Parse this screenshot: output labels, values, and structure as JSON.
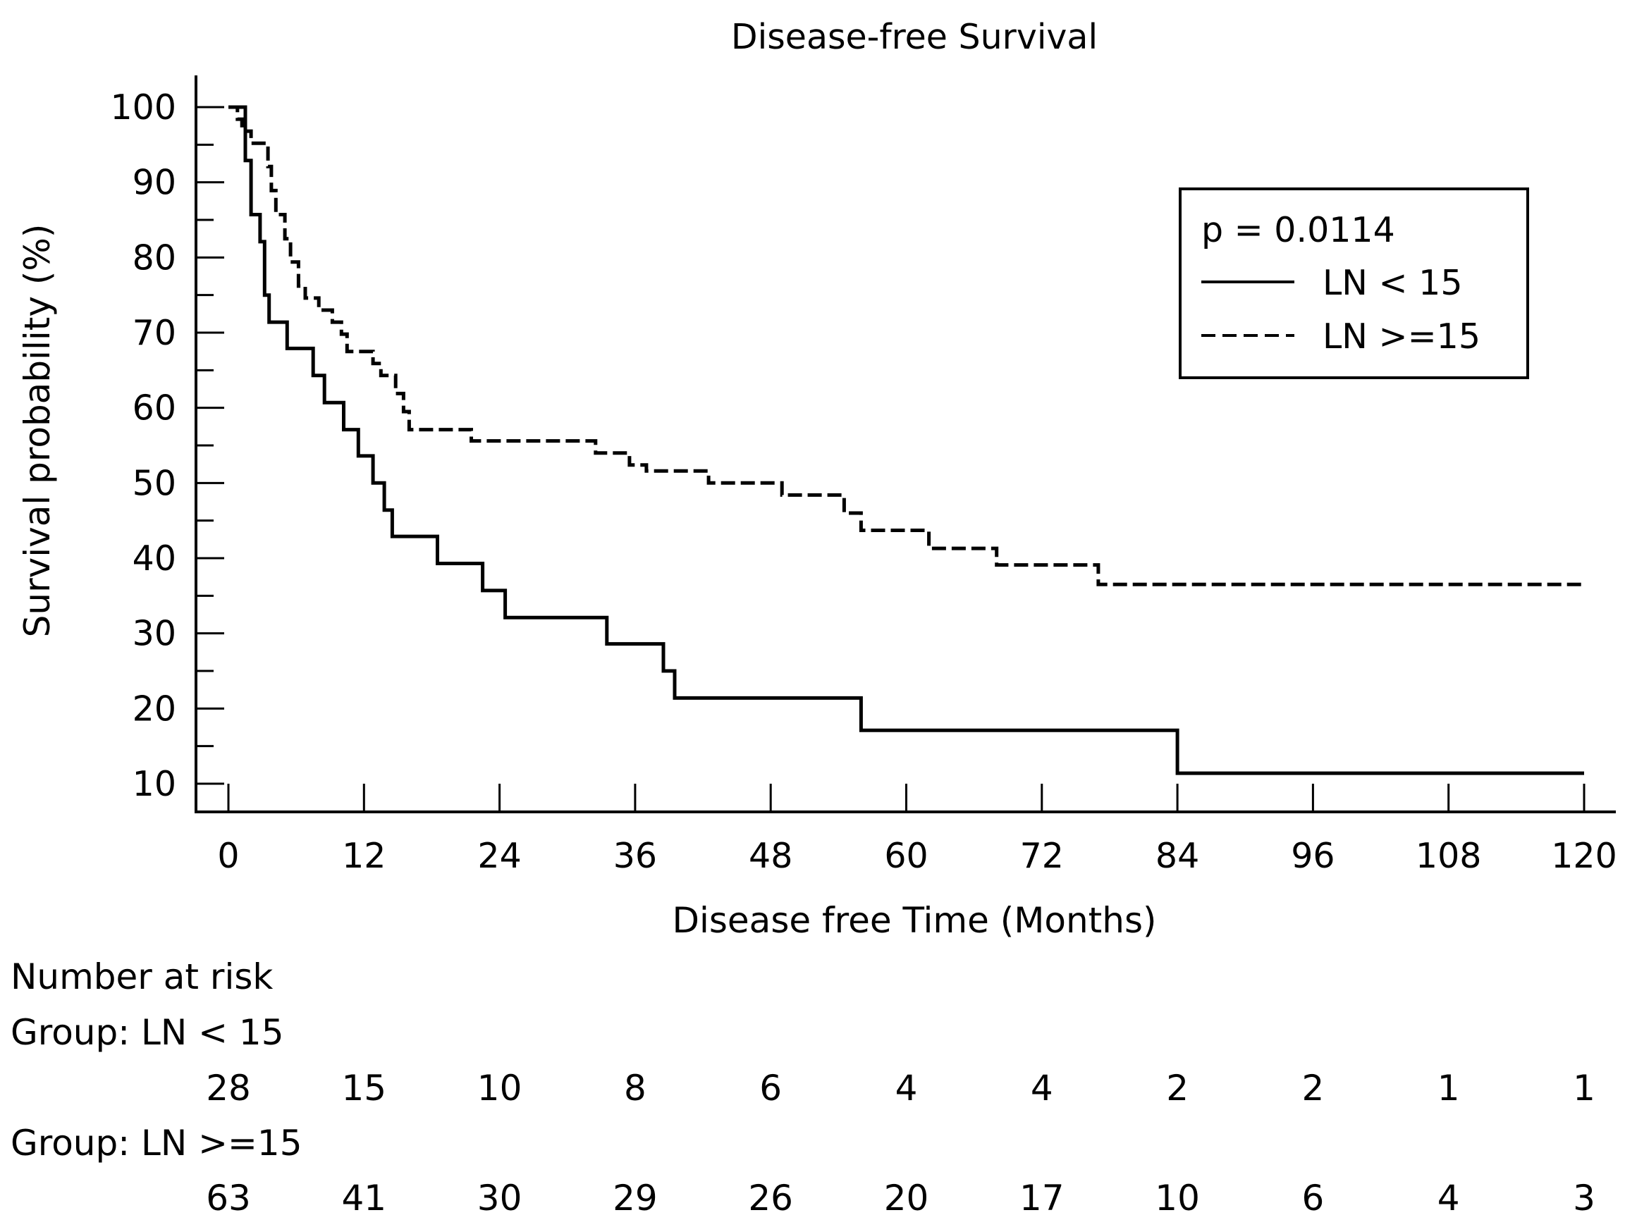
{
  "chart_data": {
    "type": "line",
    "subtype": "kaplan-meier",
    "title": "Disease-free Survival",
    "xlabel": "Disease free Time (Months)",
    "ylabel": "Survival probability (%)",
    "xlim": [
      0,
      120
    ],
    "ylim": [
      10,
      100
    ],
    "x_ticks": [
      0,
      12,
      24,
      36,
      48,
      60,
      72,
      84,
      96,
      108,
      120
    ],
    "y_ticks": [
      10,
      20,
      30,
      40,
      50,
      60,
      70,
      80,
      90,
      100
    ],
    "grid": false,
    "legend": {
      "position": "top-right",
      "annotation": "p = 0.0114",
      "entries": [
        "LN < 15",
        "LN >=15"
      ]
    },
    "series": [
      {
        "name": "LN < 15",
        "style": "solid",
        "steps": [
          [
            0,
            100
          ],
          [
            1.5,
            92.9
          ],
          [
            2.0,
            85.7
          ],
          [
            2.8,
            82.1
          ],
          [
            3.2,
            75.0
          ],
          [
            3.6,
            71.4
          ],
          [
            5.2,
            67.9
          ],
          [
            7.5,
            64.3
          ],
          [
            8.5,
            60.7
          ],
          [
            10.2,
            57.1
          ],
          [
            11.5,
            53.6
          ],
          [
            12.8,
            50.0
          ],
          [
            13.8,
            46.4
          ],
          [
            14.5,
            42.9
          ],
          [
            18.5,
            39.3
          ],
          [
            22.5,
            35.7
          ],
          [
            24.5,
            32.1
          ],
          [
            33.5,
            28.6
          ],
          [
            38.5,
            25.0
          ],
          [
            39.5,
            21.4
          ],
          [
            56.0,
            17.1
          ],
          [
            84.0,
            11.4
          ],
          [
            120.0,
            11.4
          ]
        ]
      },
      {
        "name": "LN >=15",
        "style": "dashed",
        "steps": [
          [
            0,
            100
          ],
          [
            0.8,
            98.4
          ],
          [
            1.2,
            96.8
          ],
          [
            2.0,
            95.2
          ],
          [
            3.5,
            92.1
          ],
          [
            3.8,
            88.9
          ],
          [
            4.2,
            85.7
          ],
          [
            5.0,
            82.5
          ],
          [
            5.5,
            79.4
          ],
          [
            6.2,
            76.2
          ],
          [
            6.8,
            74.6
          ],
          [
            8.0,
            73.0
          ],
          [
            9.2,
            71.4
          ],
          [
            10.0,
            69.8
          ],
          [
            10.5,
            67.5
          ],
          [
            12.8,
            65.9
          ],
          [
            13.5,
            64.3
          ],
          [
            14.8,
            61.9
          ],
          [
            15.5,
            59.5
          ],
          [
            16.0,
            57.1
          ],
          [
            21.5,
            55.6
          ],
          [
            32.5,
            54.0
          ],
          [
            35.5,
            52.4
          ],
          [
            37.0,
            51.6
          ],
          [
            42.5,
            50.0
          ],
          [
            49.0,
            48.4
          ],
          [
            54.5,
            46.0
          ],
          [
            56.0,
            43.7
          ],
          [
            62.0,
            41.3
          ],
          [
            68.0,
            39.1
          ],
          [
            77.0,
            36.5
          ],
          [
            120.0,
            36.5
          ]
        ]
      }
    ],
    "risk_table": {
      "heading": "Number at risk",
      "times": [
        0,
        12,
        24,
        36,
        48,
        60,
        72,
        84,
        96,
        108,
        120
      ],
      "groups": [
        {
          "label": "Group: LN < 15",
          "counts": [
            "28",
            "15",
            "10",
            "8",
            "6",
            "4",
            "4",
            "2",
            "2",
            "1",
            "1"
          ]
        },
        {
          "label": "Group: LN >=15",
          "counts": [
            "63",
            "41",
            "30",
            "29",
            "26",
            "20",
            "17",
            "10",
            "6",
            "4",
            "3"
          ]
        }
      ]
    }
  }
}
